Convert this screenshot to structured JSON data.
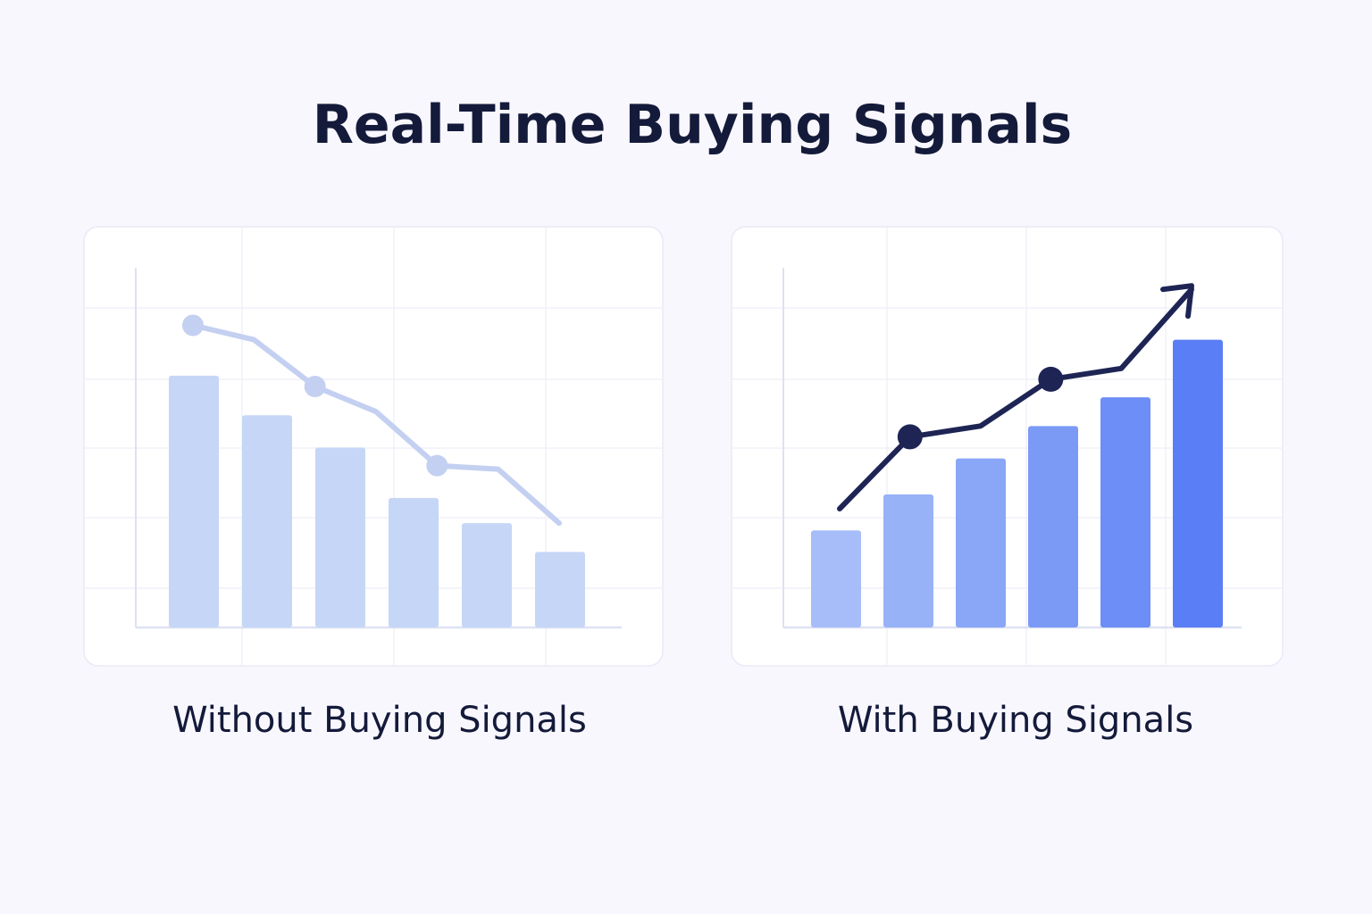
{
  "title": "Real-Time Buying Signals",
  "chart_data": [
    {
      "type": "bar",
      "title": "Without Buying Signals",
      "ylim": [
        0,
        100
      ],
      "values": [
        70,
        59,
        50,
        36,
        29,
        21
      ],
      "colors": [
        "#c6d6f7",
        "#c6d6f7",
        "#c6d6f7",
        "#c6d6f7",
        "#c6d6f7",
        "#c6d6f7"
      ],
      "line": {
        "values": [
          84,
          80,
          67,
          60,
          45,
          44,
          29
        ],
        "color": "#c4d0f1"
      }
    },
    {
      "type": "bar",
      "title": "With Buying Signals",
      "ylim": [
        0,
        100
      ],
      "values": [
        27,
        37,
        47,
        56,
        64,
        80
      ],
      "colors": [
        "#a6bdf9",
        "#98b2f8",
        "#89a6f7",
        "#7b9af6",
        "#6c8ef6",
        "#5a7ef5"
      ],
      "line": {
        "values": [
          33,
          53,
          56,
          69,
          72,
          94
        ],
        "color": "#1e2555"
      },
      "arrow": true
    }
  ]
}
